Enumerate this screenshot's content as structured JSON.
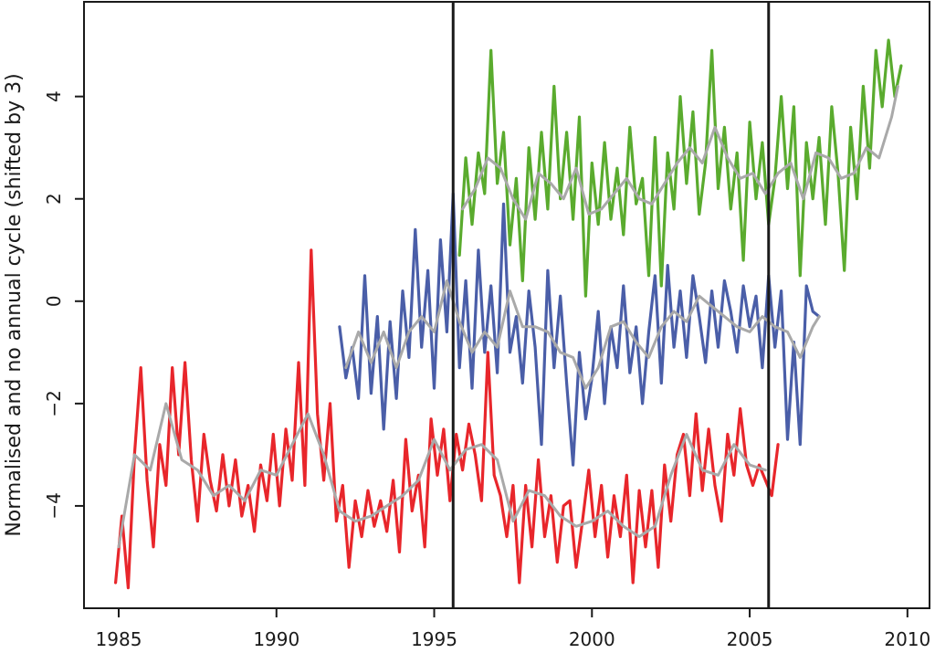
{
  "chart_data": {
    "type": "line",
    "title": "",
    "xlabel": "",
    "ylabel": "Normalised and no annual cycle (shifted by 3)",
    "xlim": [
      1983.9,
      2010.7
    ],
    "ylim": [
      -6.0,
      5.85
    ],
    "x_ticks": [
      {
        "value": 1985,
        "label": "1985"
      },
      {
        "value": 1990,
        "label": "1990"
      },
      {
        "value": 1995,
        "label": "1995"
      },
      {
        "value": 2000,
        "label": "2000"
      },
      {
        "value": 2005,
        "label": "2005"
      },
      {
        "value": 2010,
        "label": "2010"
      }
    ],
    "y_ticks": [
      {
        "value": -4,
        "label": "−4"
      },
      {
        "value": -2,
        "label": "−2"
      },
      {
        "value": 0,
        "label": "0"
      },
      {
        "value": 2,
        "label": "2"
      },
      {
        "value": 4,
        "label": "4"
      }
    ],
    "grid": false,
    "legend": "none",
    "vertical_lines": [
      1995.6,
      2005.6
    ],
    "colors": {
      "red": "#e8262b",
      "blue": "#4a5ea8",
      "green": "#5aab2e",
      "smooth": "#a9a9a9",
      "axis": "#1a1a1a"
    },
    "series": [
      {
        "color": "#e8262b",
        "x": [
          1984.9,
          1985.1,
          1985.3,
          1985.5,
          1985.7,
          1985.9,
          1986.1,
          1986.3,
          1986.5,
          1986.7,
          1986.9,
          1987.1,
          1987.3,
          1987.5,
          1987.7,
          1987.9,
          1988.1,
          1988.3,
          1988.5,
          1988.7,
          1988.9,
          1989.1,
          1989.3,
          1989.5,
          1989.7,
          1989.9,
          1990.1,
          1990.3,
          1990.5,
          1990.7,
          1990.9,
          1991.1,
          1991.3,
          1991.5,
          1991.7,
          1991.9,
          1992.1,
          1992.3,
          1992.5,
          1992.7,
          1992.9,
          1993.1,
          1993.3,
          1993.5,
          1993.7,
          1993.9,
          1994.1,
          1994.3,
          1994.5,
          1994.7,
          1994.9,
          1995.1,
          1995.3,
          1995.5,
          1995.7,
          1995.9,
          1996.1,
          1996.3,
          1996.5,
          1996.7,
          1996.9,
          1997.1,
          1997.3,
          1997.5,
          1997.7,
          1997.9,
          1998.1,
          1998.3,
          1998.5,
          1998.7,
          1998.9,
          1999.1,
          1999.3,
          1999.5,
          1999.7,
          1999.9,
          2000.1,
          2000.3,
          2000.5,
          2000.7,
          2000.9,
          2001.1,
          2001.3,
          2001.5,
          2001.7,
          2001.9,
          2002.1,
          2002.3,
          2002.5,
          2002.7,
          2002.9,
          2003.1,
          2003.3,
          2003.5,
          2003.7,
          2003.9,
          2004.1,
          2004.3,
          2004.5,
          2004.7,
          2004.9,
          2005.1,
          2005.3,
          2005.5,
          2005.7,
          2005.9
        ],
        "values": [
          -5.5,
          -4.2,
          -5.6,
          -3.0,
          -1.3,
          -3.5,
          -4.8,
          -2.8,
          -3.6,
          -1.3,
          -3.0,
          -1.2,
          -3.1,
          -4.3,
          -2.6,
          -3.5,
          -4.1,
          -3.0,
          -4.0,
          -3.1,
          -4.2,
          -3.6,
          -4.5,
          -3.2,
          -3.9,
          -2.6,
          -4.0,
          -2.5,
          -3.5,
          -1.2,
          -3.6,
          1.0,
          -2.2,
          -3.5,
          -2.0,
          -4.3,
          -3.6,
          -5.2,
          -3.9,
          -4.6,
          -3.7,
          -4.4,
          -3.9,
          -4.5,
          -3.5,
          -4.9,
          -2.7,
          -4.1,
          -3.4,
          -4.8,
          -2.3,
          -3.4,
          -2.5,
          -3.9,
          -2.6,
          -3.3,
          -2.4,
          -3.0,
          -3.9,
          -1.0,
          -3.4,
          -3.8,
          -4.6,
          -3.6,
          -5.5,
          -3.6,
          -4.8,
          -3.1,
          -4.6,
          -3.8,
          -5.1,
          -4.0,
          -3.9,
          -5.2,
          -4.3,
          -3.3,
          -4.6,
          -3.6,
          -5.0,
          -3.8,
          -4.6,
          -3.4,
          -5.5,
          -3.7,
          -4.8,
          -3.7,
          -5.2,
          -3.2,
          -4.3,
          -3.0,
          -2.6,
          -3.8,
          -2.2,
          -3.7,
          -2.5,
          -3.6,
          -4.3,
          -2.6,
          -3.4,
          -2.1,
          -3.2,
          -3.6,
          -3.2,
          -3.5,
          -3.8,
          -2.8
        ]
      },
      {
        "color": "#4a5ea8",
        "x": [
          1992.0,
          1992.2,
          1992.4,
          1992.6,
          1992.8,
          1993.0,
          1993.2,
          1993.4,
          1993.6,
          1993.8,
          1994.0,
          1994.2,
          1994.4,
          1994.6,
          1994.8,
          1995.0,
          1995.2,
          1995.4,
          1995.6,
          1995.8,
          1996.0,
          1996.2,
          1996.4,
          1996.6,
          1996.8,
          1997.0,
          1997.2,
          1997.4,
          1997.6,
          1997.8,
          1998.0,
          1998.2,
          1998.4,
          1998.6,
          1998.8,
          1999.0,
          1999.2,
          1999.4,
          1999.6,
          1999.8,
          2000.0,
          2000.2,
          2000.4,
          2000.6,
          2000.8,
          2001.0,
          2001.2,
          2001.4,
          2001.6,
          2001.8,
          2002.0,
          2002.2,
          2002.4,
          2002.6,
          2002.8,
          2003.0,
          2003.2,
          2003.4,
          2003.6,
          2003.8,
          2004.0,
          2004.2,
          2004.4,
          2004.6,
          2004.8,
          2005.0,
          2005.2,
          2005.4,
          2005.6,
          2005.8,
          2006.0,
          2006.2,
          2006.4,
          2006.6,
          2006.8,
          2007.0,
          2007.2
        ],
        "values": [
          -0.5,
          -1.5,
          -0.9,
          -1.9,
          0.5,
          -1.8,
          -0.3,
          -2.5,
          -0.4,
          -1.9,
          0.2,
          -1.1,
          1.4,
          -0.9,
          0.6,
          -1.7,
          1.2,
          -0.6,
          2.1,
          -1.3,
          0.4,
          -1.7,
          1.0,
          -1.0,
          0.3,
          -1.4,
          1.9,
          -1.0,
          -0.3,
          -1.6,
          0.2,
          -0.9,
          -2.8,
          0.6,
          -1.3,
          0.1,
          -1.6,
          -3.2,
          -1.0,
          -2.3,
          -1.5,
          -0.2,
          -2.0,
          -0.5,
          -1.3,
          0.3,
          -1.4,
          -0.5,
          -2.0,
          -0.6,
          0.5,
          -1.6,
          0.7,
          -0.9,
          0.2,
          -1.1,
          0.5,
          -0.3,
          -1.2,
          0.2,
          -0.9,
          0.4,
          -0.2,
          -1.0,
          0.3,
          -0.5,
          0.1,
          -1.3,
          0.5,
          -0.9,
          0.2,
          -2.7,
          -0.8,
          -2.8,
          0.3,
          -0.2,
          -0.3
        ]
      },
      {
        "color": "#5aab2e",
        "x": [
          1995.8,
          1996.0,
          1996.2,
          1996.4,
          1996.6,
          1996.8,
          1997.0,
          1997.2,
          1997.4,
          1997.6,
          1997.8,
          1998.0,
          1998.2,
          1998.4,
          1998.6,
          1998.8,
          1999.0,
          1999.2,
          1999.4,
          1999.6,
          1999.8,
          2000.0,
          2000.2,
          2000.4,
          2000.6,
          2000.8,
          2001.0,
          2001.2,
          2001.4,
          2001.6,
          2001.8,
          2002.0,
          2002.2,
          2002.4,
          2002.6,
          2002.8,
          2003.0,
          2003.2,
          2003.4,
          2003.6,
          2003.8,
          2004.0,
          2004.2,
          2004.4,
          2004.6,
          2004.8,
          2005.0,
          2005.2,
          2005.4,
          2005.6,
          2005.8,
          2006.0,
          2006.2,
          2006.4,
          2006.6,
          2006.8,
          2007.0,
          2007.2,
          2007.4,
          2007.6,
          2007.8,
          2008.0,
          2008.2,
          2008.4,
          2008.6,
          2008.8,
          2009.0,
          2009.2,
          2009.4,
          2009.6,
          2009.8
        ],
        "values": [
          0.9,
          2.8,
          1.5,
          2.9,
          2.1,
          4.9,
          2.3,
          3.3,
          1.1,
          2.4,
          0.4,
          3.0,
          1.6,
          3.3,
          1.8,
          4.2,
          2.0,
          3.3,
          1.6,
          3.6,
          0.1,
          2.7,
          1.5,
          3.1,
          1.6,
          2.6,
          1.3,
          3.4,
          1.9,
          2.4,
          0.5,
          3.2,
          0.3,
          2.9,
          1.8,
          4.0,
          2.3,
          3.7,
          1.7,
          2.7,
          4.9,
          2.2,
          3.4,
          1.8,
          2.9,
          0.8,
          3.5,
          2.0,
          3.1,
          1.5,
          2.4,
          4.0,
          2.2,
          3.8,
          0.5,
          3.1,
          2.0,
          3.2,
          1.5,
          3.8,
          2.5,
          0.6,
          3.4,
          2.0,
          4.2,
          2.6,
          4.9,
          3.8,
          5.1,
          4.0,
          4.6
        ]
      },
      {
        "color": "#a9a9a9",
        "x": [
          1985.0,
          1985.5,
          1986.0,
          1986.5,
          1987.0,
          1987.5,
          1988.0,
          1988.5,
          1989.0,
          1989.5,
          1990.0,
          1990.5,
          1991.0,
          1991.5,
          1992.0,
          1992.5,
          1993.0,
          1993.5,
          1994.0,
          1994.5,
          1995.0,
          1995.5,
          1996.0,
          1996.5,
          1997.0,
          1997.5,
          1998.0,
          1998.5,
          1999.0,
          1999.5,
          2000.0,
          2000.5,
          2001.0,
          2001.5,
          2002.0,
          2002.5,
          2003.0,
          2003.5,
          2004.0,
          2004.5,
          2005.0,
          2005.5
        ],
        "values": [
          -4.8,
          -3.0,
          -3.3,
          -2.0,
          -3.1,
          -3.3,
          -3.8,
          -3.6,
          -3.9,
          -3.3,
          -3.4,
          -2.8,
          -2.2,
          -3.0,
          -4.1,
          -4.3,
          -4.2,
          -4.0,
          -3.8,
          -3.5,
          -2.7,
          -3.3,
          -2.9,
          -2.8,
          -3.1,
          -4.3,
          -3.7,
          -3.8,
          -4.2,
          -4.4,
          -4.3,
          -4.1,
          -4.4,
          -4.6,
          -4.4,
          -3.4,
          -2.6,
          -3.3,
          -3.4,
          -2.8,
          -3.2,
          -3.3
        ]
      },
      {
        "color": "#a9a9a9",
        "x": [
          1992.2,
          1992.6,
          1993.0,
          1993.4,
          1993.8,
          1994.2,
          1994.6,
          1995.0,
          1995.4,
          1995.8,
          1996.2,
          1996.6,
          1997.0,
          1997.4,
          1997.8,
          1998.2,
          1998.6,
          1999.0,
          1999.4,
          1999.8,
          2000.2,
          2000.6,
          2001.0,
          2001.4,
          2001.8,
          2002.2,
          2002.6,
          2003.0,
          2003.4,
          2003.8,
          2004.2,
          2004.6,
          2005.0,
          2005.4,
          2005.8,
          2006.2,
          2006.6,
          2007.0,
          2007.2
        ],
        "values": [
          -1.3,
          -0.6,
          -1.2,
          -0.6,
          -1.3,
          -0.6,
          -0.3,
          -0.6,
          0.4,
          -0.4,
          -1.0,
          -0.6,
          -0.9,
          0.2,
          -0.5,
          -0.5,
          -0.6,
          -1.0,
          -1.1,
          -1.7,
          -1.3,
          -0.5,
          -0.4,
          -0.8,
          -1.1,
          -0.5,
          -0.2,
          -0.4,
          0.1,
          -0.1,
          -0.3,
          -0.5,
          -0.6,
          -0.3,
          -0.5,
          -0.6,
          -1.1,
          -0.5,
          -0.3
        ]
      },
      {
        "color": "#a9a9a9",
        "x": [
          1995.9,
          1996.3,
          1996.7,
          1997.1,
          1997.5,
          1997.9,
          1998.3,
          1998.7,
          1999.1,
          1999.5,
          1999.9,
          2000.3,
          2000.7,
          2001.1,
          2001.5,
          2001.9,
          2002.3,
          2002.7,
          2003.1,
          2003.5,
          2003.9,
          2004.3,
          2004.7,
          2005.1,
          2005.5,
          2005.9,
          2006.3,
          2006.7,
          2007.1,
          2007.5,
          2007.9,
          2008.3,
          2008.7,
          2009.1,
          2009.5,
          2009.7
        ],
        "values": [
          1.8,
          2.2,
          2.8,
          2.6,
          2.0,
          1.6,
          2.5,
          2.3,
          2.0,
          2.6,
          1.7,
          1.8,
          2.1,
          2.4,
          2.0,
          1.9,
          2.3,
          2.7,
          3.0,
          2.7,
          3.4,
          2.8,
          2.4,
          2.5,
          2.1,
          2.5,
          2.7,
          2.0,
          2.9,
          2.8,
          2.4,
          2.5,
          3.0,
          2.8,
          3.6,
          4.2
        ]
      }
    ]
  }
}
